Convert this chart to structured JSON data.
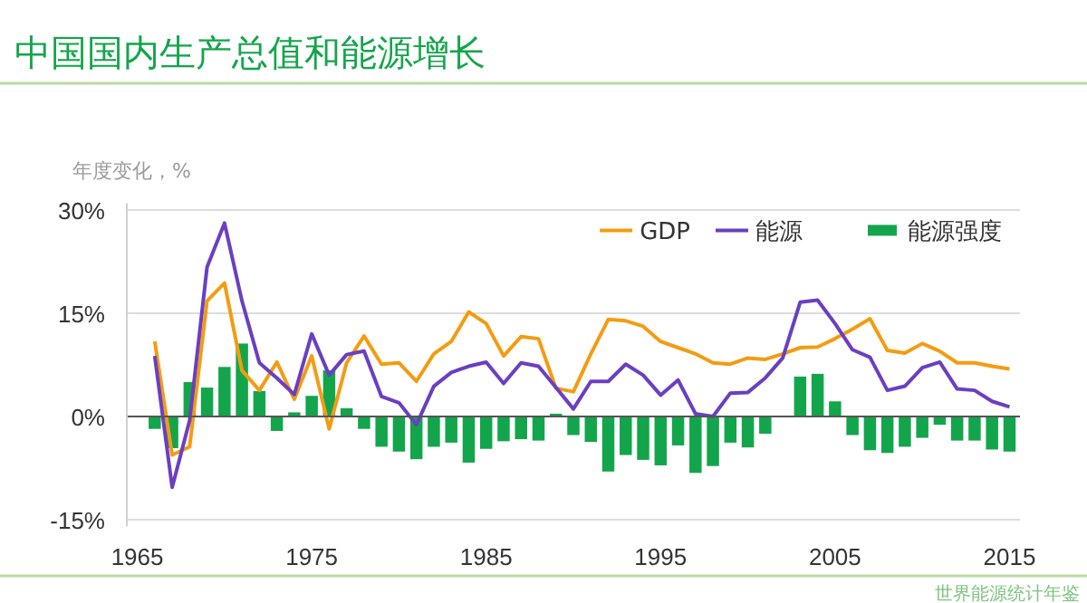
{
  "chart_data": {
    "type": "line",
    "title": "中国国内生产总值和能源增长",
    "ylabel": "年度变化，%",
    "annotations": [
      "世界能源统计年鉴"
    ],
    "x": [
      1966,
      1967,
      1968,
      1969,
      1970,
      1971,
      1972,
      1973,
      1974,
      1975,
      1976,
      1977,
      1978,
      1979,
      1980,
      1981,
      1982,
      1983,
      1984,
      1985,
      1986,
      1987,
      1988,
      1989,
      1990,
      1991,
      1992,
      1993,
      1994,
      1995,
      1996,
      1997,
      1998,
      1999,
      2000,
      2001,
      2002,
      2003,
      2004,
      2005,
      2006,
      2007,
      2008,
      2009,
      2010,
      2011,
      2012,
      2013,
      2014,
      2015
    ],
    "series": [
      {
        "name": "GDP",
        "color": "#f39c12",
        "values": [
          10.9,
          -5.6,
          -4.4,
          16.8,
          19.4,
          6.7,
          3.8,
          7.9,
          2.5,
          8.8,
          -1.8,
          7.8,
          11.7,
          7.6,
          7.8,
          5.1,
          9.1,
          10.9,
          15.2,
          13.5,
          8.8,
          11.6,
          11.3,
          4.1,
          3.6,
          9.1,
          14.1,
          13.9,
          13.1,
          10.9,
          10.0,
          9.1,
          7.8,
          7.6,
          8.5,
          8.3,
          9.1,
          10.0,
          10.1,
          11.3,
          12.7,
          14.2,
          9.6,
          9.2,
          10.6,
          9.5,
          7.8,
          7.8,
          7.3,
          6.9
        ]
      },
      {
        "name": "能源",
        "color": "#6a3fc2",
        "values": [
          8.8,
          -10.3,
          -0.6,
          21.7,
          28.1,
          16.8,
          7.8,
          5.6,
          3.2,
          12.0,
          6.0,
          9.0,
          9.5,
          2.9,
          2.0,
          -1.2,
          4.4,
          6.4,
          7.3,
          7.9,
          4.8,
          7.8,
          7.3,
          4.2,
          1.1,
          5.1,
          5.1,
          7.6,
          6.0,
          3.1,
          5.3,
          0.4,
          0.0,
          3.4,
          3.5,
          5.6,
          8.5,
          16.6,
          16.9,
          13.5,
          9.7,
          8.6,
          3.8,
          4.4,
          7.1,
          7.9,
          4.0,
          3.8,
          2.2,
          1.4
        ]
      },
      {
        "name": "能源强度",
        "type": "bar",
        "color": "#13a54b",
        "values": [
          -1.8,
          -4.6,
          5.0,
          4.2,
          7.2,
          10.6,
          3.7,
          -2.1,
          0.6,
          3.0,
          6.7,
          1.2,
          -1.8,
          -4.4,
          -5.1,
          -6.2,
          -4.4,
          -3.8,
          -6.7,
          -4.7,
          -3.6,
          -3.3,
          -3.5,
          0.4,
          -2.7,
          -3.7,
          -8.0,
          -5.6,
          -6.3,
          -7.1,
          -4.2,
          -8.2,
          -7.2,
          -3.8,
          -4.5,
          -2.5,
          null,
          5.8,
          6.2,
          2.2,
          -2.7,
          -4.9,
          -5.3,
          -4.4,
          -3.1,
          -1.2,
          -3.5,
          -3.5,
          -4.8,
          -5.1
        ]
      }
    ],
    "xlim": [
      1964.4,
      2015.6
    ],
    "xticks": [
      1965,
      1975,
      1985,
      1995,
      2005,
      2015
    ],
    "ylim": [
      -16,
      31
    ],
    "yticks": [
      {
        "value": -15,
        "label": "-15%"
      },
      {
        "value": 0,
        "label": "0%"
      },
      {
        "value": 15,
        "label": "15%"
      },
      {
        "value": 30,
        "label": "30%"
      }
    ],
    "grid": "y",
    "legend": "top right"
  }
}
